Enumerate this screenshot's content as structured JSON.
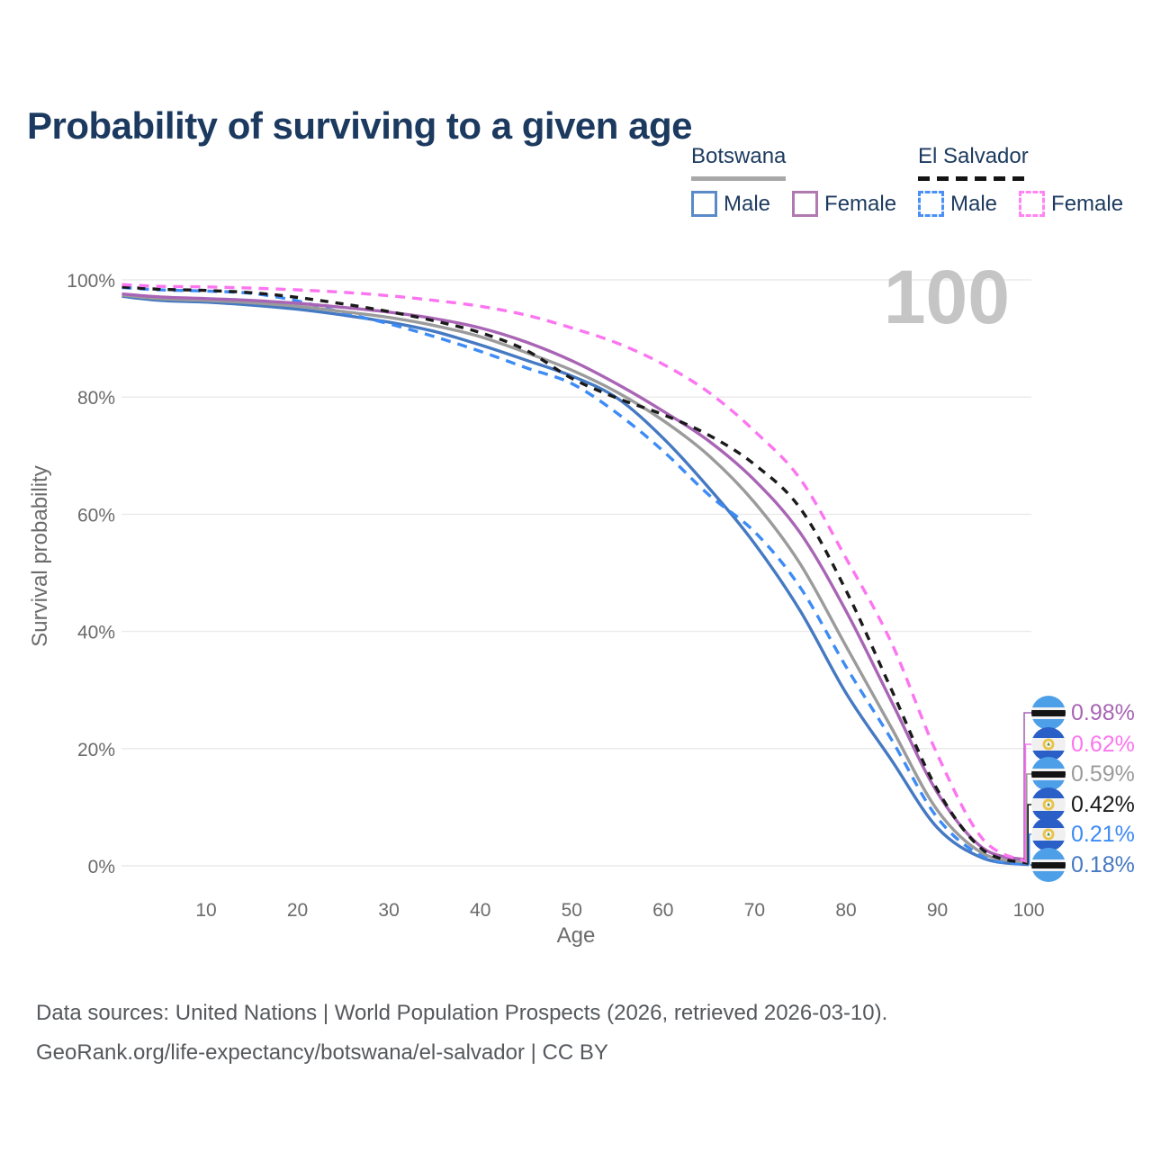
{
  "title": "Probability of surviving to a given age",
  "watermark_age": "100",
  "legend": {
    "groups": [
      {
        "id": "botswana",
        "label": "Botswana",
        "line_style": "solid",
        "line_color": "#a8a8a8",
        "items": [
          {
            "label": "Male",
            "box_style": "solid",
            "box_color": "#5b8ac9"
          },
          {
            "label": "Female",
            "box_style": "solid",
            "box_color": "#b07ab0"
          }
        ]
      },
      {
        "id": "el-salvador",
        "label": "El Salvador",
        "line_style": "dashed",
        "line_color": "#141414",
        "items": [
          {
            "label": "Male",
            "box_style": "dashed",
            "box_color": "#4a90f7"
          },
          {
            "label": "Female",
            "box_style": "dashed",
            "box_color": "#ff85f2"
          }
        ]
      }
    ]
  },
  "chart_data": {
    "type": "line",
    "title": "Probability of surviving to a given age",
    "xlabel": "Age",
    "ylabel": "Survival probability",
    "xlim": [
      0,
      100
    ],
    "ylim": [
      0,
      100
    ],
    "grid": true,
    "x_ticks": [
      10,
      20,
      30,
      40,
      50,
      60,
      70,
      80,
      90,
      100
    ],
    "y_ticks": [
      0,
      20,
      40,
      60,
      80,
      100
    ],
    "y_tick_suffix": "%",
    "x": [
      0,
      5,
      10,
      15,
      20,
      25,
      30,
      35,
      40,
      45,
      50,
      55,
      60,
      65,
      70,
      75,
      80,
      85,
      90,
      95,
      100
    ],
    "series": [
      {
        "name": "Botswana Female",
        "country": "Botswana",
        "sex": "Female",
        "color": "#a965b5",
        "dash": "solid",
        "end_label": "0.98%",
        "flag": "botswana",
        "values": [
          97.6,
          97.1,
          96.8,
          96.5,
          96.0,
          95.3,
          94.5,
          93.4,
          91.8,
          89.4,
          86.2,
          82.2,
          77.6,
          72.5,
          65.8,
          56.8,
          43.5,
          28.0,
          12.5,
          3.0,
          0.98
        ]
      },
      {
        "name": "El Salvador Female",
        "country": "El Salvador",
        "sex": "Female",
        "color": "#fc75f0",
        "dash": "dashed",
        "end_label": "0.62%",
        "flag": "el-salvador",
        "values": [
          99.2,
          98.9,
          98.8,
          98.6,
          98.3,
          97.9,
          97.3,
          96.5,
          95.5,
          94.0,
          91.8,
          89.2,
          85.6,
          80.8,
          74.2,
          66.0,
          52.5,
          38.0,
          19.0,
          4.5,
          0.62
        ]
      },
      {
        "name": "Botswana (both sexes)",
        "country": "Botswana",
        "sex": "Both",
        "color": "#9b9b9b",
        "dash": "solid",
        "end_label": "0.59%",
        "flag": "botswana",
        "values": [
          97.4,
          96.8,
          96.5,
          96.1,
          95.5,
          94.6,
          93.6,
          92.2,
          90.3,
          87.6,
          84.6,
          80.8,
          76.0,
          70.0,
          62.0,
          51.5,
          37.5,
          23.5,
          9.5,
          2.1,
          0.59
        ]
      },
      {
        "name": "El Salvador (both sexes)",
        "country": "El Salvador",
        "sex": "Both",
        "color": "#1a1a1a",
        "dash": "dashed",
        "end_label": "0.42%",
        "flag": "el-salvador",
        "values": [
          98.8,
          98.4,
          98.2,
          97.8,
          97.0,
          95.9,
          94.6,
          93.0,
          91.0,
          88.0,
          83.2,
          79.8,
          77.0,
          73.5,
          68.5,
          61.0,
          47.0,
          30.0,
          13.0,
          2.7,
          0.42
        ]
      },
      {
        "name": "El Salvador Male",
        "country": "El Salvador",
        "sex": "Male",
        "color": "#3d8bf5",
        "dash": "dashed",
        "end_label": "0.21%",
        "flag": "el-salvador",
        "values": [
          98.7,
          98.3,
          98.1,
          97.7,
          96.4,
          94.4,
          92.5,
          90.3,
          87.8,
          85.0,
          82.3,
          77.2,
          70.8,
          63.3,
          57.0,
          47.5,
          34.0,
          21.5,
          8.2,
          1.6,
          0.21
        ]
      },
      {
        "name": "Botswana Male",
        "country": "Botswana",
        "sex": "Male",
        "color": "#4579c2",
        "dash": "solid",
        "end_label": "0.18%",
        "flag": "botswana",
        "values": [
          97.2,
          96.5,
          96.2,
          95.7,
          95.0,
          94.0,
          92.8,
          91.2,
          88.9,
          86.3,
          83.6,
          79.8,
          73.0,
          64.5,
          55.0,
          43.5,
          29.5,
          18.0,
          6.5,
          1.3,
          0.18
        ]
      }
    ],
    "legend_position": "top-right",
    "annotations": {
      "age_counter": "100"
    }
  },
  "footer": {
    "line1": "Data sources: United Nations | World Population Prospects (2026, retrieved 2026-03-10).",
    "line2": "GeoRank.org/life-expectancy/botswana/el-salvador | CC BY"
  }
}
